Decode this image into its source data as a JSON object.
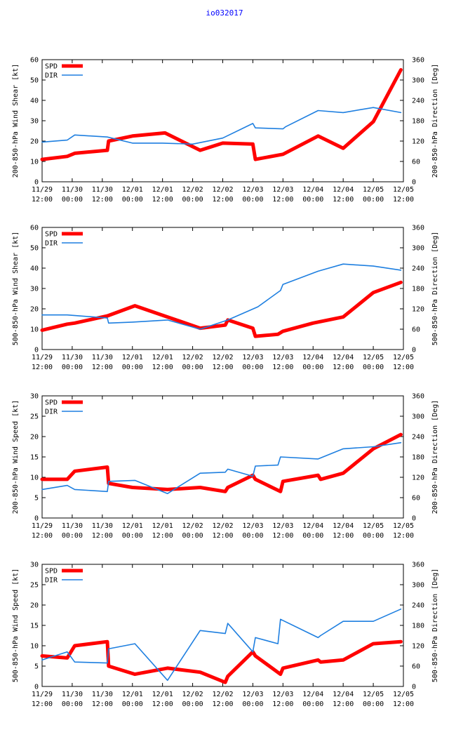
{
  "page": {
    "title": "io032017"
  },
  "colors": {
    "spd": "#ff0000",
    "dir": "#1e7fe0",
    "title": "#0000ff",
    "axis": "#000000"
  },
  "chart_data": [
    {
      "type": "line",
      "ylabel": "200-850-hPa Wind Shear [kt]",
      "y2label": "200-850-hPa Direction [Deg]",
      "ylim": [
        0,
        60
      ],
      "yticks": [
        0,
        10,
        20,
        30,
        40,
        50,
        60
      ],
      "y2lim": [
        0,
        360
      ],
      "y2ticks": [
        0,
        60,
        120,
        180,
        240,
        300,
        360
      ],
      "xlim": [
        0,
        144
      ],
      "xticks": [
        0,
        12,
        24,
        36,
        48,
        60,
        72,
        84,
        96,
        108,
        120,
        132,
        144
      ],
      "xtick_labels": [
        [
          "11/29",
          "12:00"
        ],
        [
          "11/30",
          "00:00"
        ],
        [
          "11/30",
          "12:00"
        ],
        [
          "12/01",
          "00:00"
        ],
        [
          "12/01",
          "12:00"
        ],
        [
          "12/02",
          "00:00"
        ],
        [
          "12/02",
          "12:00"
        ],
        [
          "12/03",
          "00:00"
        ],
        [
          "12/03",
          "12:00"
        ],
        [
          "12/04",
          "00:00"
        ],
        [
          "12/04",
          "12:00"
        ],
        [
          "12/05",
          "00:00"
        ],
        [
          "12/05",
          "12:00"
        ]
      ],
      "legend": [
        "SPD",
        "DIR"
      ],
      "series": [
        {
          "name": "SPD",
          "axis": "left",
          "x": [
            0,
            10,
            13,
            26,
            26.5,
            36,
            49,
            63,
            72,
            84,
            85,
            96,
            110,
            120,
            132,
            143
          ],
          "y": [
            11,
            12.5,
            14,
            15.5,
            20,
            22.5,
            24,
            15.5,
            19,
            18.5,
            11,
            13.5,
            22.5,
            16.5,
            29.5,
            55
          ]
        },
        {
          "name": "DIR",
          "axis": "right",
          "x": [
            0,
            10,
            13,
            26,
            36,
            48,
            60,
            72,
            84,
            85,
            96,
            97,
            110,
            120,
            132,
            143
          ],
          "y": [
            117,
            123,
            138,
            132,
            114,
            114,
            111,
            129,
            172,
            159,
            156,
            162,
            210,
            204,
            219,
            204
          ]
        }
      ]
    },
    {
      "type": "line",
      "ylabel": "500-850-hPa Wind Shear [kt]",
      "y2label": "500-850-hPa Direction [Deg]",
      "ylim": [
        0,
        60
      ],
      "yticks": [
        0,
        10,
        20,
        30,
        40,
        50,
        60
      ],
      "y2lim": [
        0,
        360
      ],
      "y2ticks": [
        0,
        60,
        120,
        180,
        240,
        300,
        360
      ],
      "xlim": [
        0,
        144
      ],
      "xticks": [
        0,
        12,
        24,
        36,
        48,
        60,
        72,
        84,
        96,
        108,
        120,
        132,
        144
      ],
      "xtick_labels": [
        [
          "11/29",
          "12:00"
        ],
        [
          "11/30",
          "00:00"
        ],
        [
          "11/30",
          "12:00"
        ],
        [
          "12/01",
          "00:00"
        ],
        [
          "12/01",
          "12:00"
        ],
        [
          "12/02",
          "00:00"
        ],
        [
          "12/02",
          "12:00"
        ],
        [
          "12/03",
          "00:00"
        ],
        [
          "12/03",
          "12:00"
        ],
        [
          "12/04",
          "00:00"
        ],
        [
          "12/04",
          "12:00"
        ],
        [
          "12/05",
          "00:00"
        ],
        [
          "12/05",
          "12:00"
        ]
      ],
      "legend": [
        "SPD",
        "DIR"
      ],
      "series": [
        {
          "name": "SPD",
          "axis": "left",
          "x": [
            0,
            10,
            13,
            26,
            37,
            50,
            63,
            73,
            74,
            84,
            85,
            94,
            96,
            108,
            120,
            132,
            143
          ],
          "y": [
            9.5,
            12.5,
            13,
            16.5,
            21.5,
            16,
            10.5,
            12,
            14.5,
            10.5,
            6.5,
            7.5,
            9,
            13,
            16,
            28,
            33
          ]
        },
        {
          "name": "DIR",
          "axis": "right",
          "x": [
            0,
            10,
            26,
            26.5,
            36,
            50,
            63,
            74,
            86,
            95,
            96,
            110,
            120,
            132,
            143
          ],
          "y": [
            102,
            102,
            93,
            78,
            81,
            87,
            60,
            87,
            126,
            174,
            192,
            231,
            252,
            246,
            234
          ]
        }
      ]
    },
    {
      "type": "line",
      "ylabel": "200-850-hPa Wind Speed [kt]",
      "y2label": "200-850-hPa Direction [Deg]",
      "ylim": [
        0,
        30
      ],
      "yticks": [
        0,
        5,
        10,
        15,
        20,
        25,
        30
      ],
      "y2lim": [
        0,
        360
      ],
      "y2ticks": [
        0,
        60,
        120,
        180,
        240,
        300,
        360
      ],
      "xlim": [
        0,
        144
      ],
      "xticks": [
        0,
        12,
        24,
        36,
        48,
        60,
        72,
        84,
        96,
        108,
        120,
        132,
        144
      ],
      "xtick_labels": [
        [
          "11/29",
          "12:00"
        ],
        [
          "11/30",
          "00:00"
        ],
        [
          "11/30",
          "12:00"
        ],
        [
          "12/01",
          "00:00"
        ],
        [
          "12/01",
          "12:00"
        ],
        [
          "12/02",
          "00:00"
        ],
        [
          "12/02",
          "12:00"
        ],
        [
          "12/03",
          "00:00"
        ],
        [
          "12/03",
          "12:00"
        ],
        [
          "12/04",
          "00:00"
        ],
        [
          "12/04",
          "12:00"
        ],
        [
          "12/05",
          "00:00"
        ],
        [
          "12/05",
          "12:00"
        ]
      ],
      "legend": [
        "SPD",
        "DIR"
      ],
      "series": [
        {
          "name": "SPD",
          "axis": "left",
          "x": [
            0,
            10,
            13,
            26,
            26.5,
            36,
            50,
            63,
            73,
            74,
            84,
            85,
            95,
            96,
            110,
            111,
            120,
            132,
            143
          ],
          "y": [
            9.5,
            9.5,
            11.5,
            12.5,
            8.5,
            7.5,
            7,
            7.5,
            6.5,
            7.5,
            10.5,
            9.5,
            6.5,
            9,
            10.5,
            9.5,
            11,
            17,
            20.5
          ]
        },
        {
          "name": "DIR",
          "axis": "right",
          "x": [
            0,
            10,
            13,
            26,
            26.5,
            37,
            50,
            63,
            73,
            74,
            84,
            85,
            94,
            95,
            110,
            120,
            132,
            143
          ],
          "y": [
            84,
            96,
            84,
            78,
            108,
            111,
            72,
            132,
            135,
            144,
            123,
            153,
            156,
            180,
            174,
            204,
            210,
            222
          ]
        }
      ]
    },
    {
      "type": "line",
      "ylabel": "500-850-hPa Wind Speed [kt]",
      "y2label": "500-850-hPa Direction [Deg]",
      "ylim": [
        0,
        30
      ],
      "yticks": [
        0,
        5,
        10,
        15,
        20,
        25,
        30
      ],
      "y2lim": [
        0,
        360
      ],
      "y2ticks": [
        0,
        60,
        120,
        180,
        240,
        300,
        360
      ],
      "xlim": [
        0,
        144
      ],
      "xticks": [
        0,
        12,
        24,
        36,
        48,
        60,
        72,
        84,
        96,
        108,
        120,
        132,
        144
      ],
      "xtick_labels": [
        [
          "11/29",
          "12:00"
        ],
        [
          "11/30",
          "00:00"
        ],
        [
          "11/30",
          "12:00"
        ],
        [
          "12/01",
          "00:00"
        ],
        [
          "12/01",
          "12:00"
        ],
        [
          "12/02",
          "00:00"
        ],
        [
          "12/02",
          "12:00"
        ],
        [
          "12/03",
          "00:00"
        ],
        [
          "12/03",
          "12:00"
        ],
        [
          "12/04",
          "00:00"
        ],
        [
          "12/04",
          "12:00"
        ],
        [
          "12/05",
          "00:00"
        ],
        [
          "12/05",
          "12:00"
        ]
      ],
      "legend": [
        "SPD",
        "DIR"
      ],
      "series": [
        {
          "name": "SPD",
          "axis": "left",
          "x": [
            0,
            10,
            13,
            26,
            26.5,
            37,
            50,
            63,
            73,
            74,
            84,
            85,
            95,
            96,
            110,
            111,
            120,
            132,
            143
          ],
          "y": [
            7.5,
            7,
            10,
            11,
            5,
            3,
            4.5,
            3.5,
            1,
            2.5,
            8.5,
            7.5,
            3,
            4.5,
            6.5,
            6,
            6.5,
            10.5,
            11
          ]
        },
        {
          "name": "DIR",
          "axis": "right",
          "x": [
            0,
            10,
            13,
            26,
            26.5,
            37,
            50,
            63,
            73,
            74,
            84,
            85,
            94,
            95,
            110,
            111,
            120,
            132,
            143
          ],
          "y": [
            78,
            102,
            72,
            69,
            111,
            126,
            18,
            165,
            156,
            186,
            102,
            144,
            126,
            198,
            144,
            150,
            192,
            192,
            228
          ]
        }
      ]
    }
  ]
}
